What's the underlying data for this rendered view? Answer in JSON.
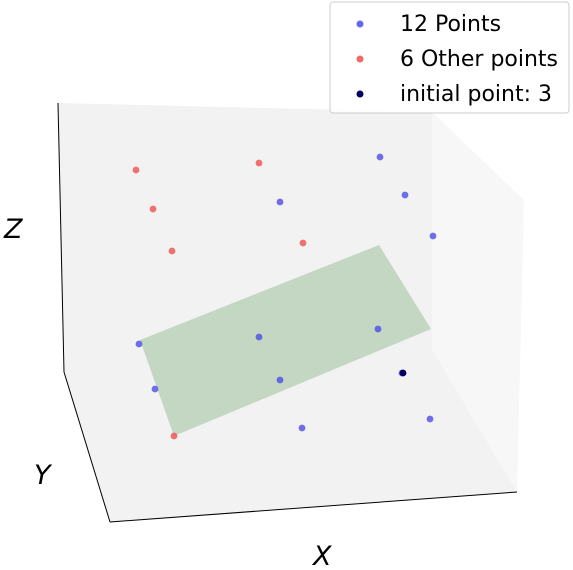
{
  "chart_data": {
    "type": "scatter",
    "title": "",
    "xlabel": "X",
    "ylabel": "Y",
    "zlabel": "Z",
    "legend_position": "top-right",
    "grid": false,
    "series": [
      {
        "name": "12 Points",
        "color": "#4c4ce6",
        "points": [
          {
            "id": "b1"
          },
          {
            "id": "b2"
          },
          {
            "id": "b3"
          },
          {
            "id": "b4"
          },
          {
            "id": "b5"
          },
          {
            "id": "b6"
          },
          {
            "id": "b7"
          },
          {
            "id": "b8"
          },
          {
            "id": "b9"
          },
          {
            "id": "b10"
          },
          {
            "id": "b11"
          },
          {
            "id": "b12"
          }
        ]
      },
      {
        "name": "6 Other points",
        "color": "#ef4f4f",
        "points": [
          {
            "id": "r1"
          },
          {
            "id": "r2"
          },
          {
            "id": "r3"
          },
          {
            "id": "r4"
          },
          {
            "id": "r5"
          },
          {
            "id": "r6"
          }
        ]
      },
      {
        "name": "initial point: 3",
        "color": "#000000",
        "marker_color": "#00005a",
        "points": [
          {
            "id": "i1"
          }
        ]
      }
    ],
    "plane": {
      "color": "#a9c7a9"
    }
  }
}
